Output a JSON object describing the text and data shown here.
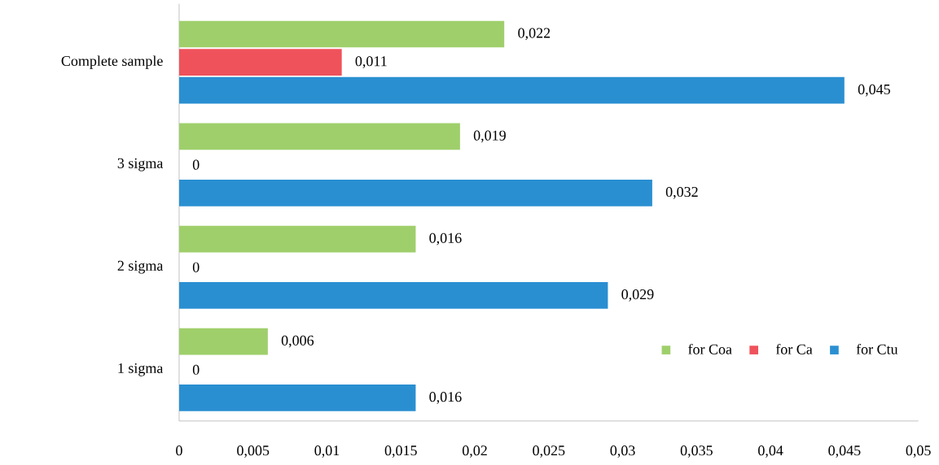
{
  "chart_data": {
    "type": "bar",
    "orientation": "horizontal",
    "categories": [
      "Complete sample",
      "3 sigma",
      "2 sigma",
      "1 sigma"
    ],
    "series": [
      {
        "name": "for Coa",
        "color": "#9fcf6b",
        "values": [
          0.022,
          0.019,
          0.016,
          0.006
        ],
        "value_labels": [
          "0,022",
          "0,019",
          "0,016",
          "0,006"
        ]
      },
      {
        "name": "for Ca",
        "color": "#ef525b",
        "values": [
          0.011,
          0,
          0,
          0
        ],
        "value_labels": [
          "0,011",
          "0",
          "0",
          "0"
        ]
      },
      {
        "name": "for Ctu",
        "color": "#2a8fd1",
        "values": [
          0.045,
          0.032,
          0.029,
          0.016
        ],
        "value_labels": [
          "0,045",
          "0,032",
          "0,029",
          "0,016"
        ]
      }
    ],
    "xlim": [
      0,
      0.05
    ],
    "xticks": [
      0,
      {
        "value": 0.005,
        "label": "0,005"
      },
      {
        "value": 0.01,
        "label": "0,01"
      },
      {
        "value": 0.015,
        "label": "0,015"
      },
      {
        "value": 0.02,
        "label": "0,02"
      },
      {
        "value": 0.025,
        "label": "0,025"
      },
      {
        "value": 0.03,
        "label": "0,03"
      },
      {
        "value": 0.035,
        "label": "0,035"
      },
      {
        "value": 0.04,
        "label": "0,04"
      },
      {
        "value": 0.045,
        "label": "0,045"
      },
      {
        "value": 0.05,
        "label": "0,05"
      }
    ],
    "legend": "bottom right"
  }
}
